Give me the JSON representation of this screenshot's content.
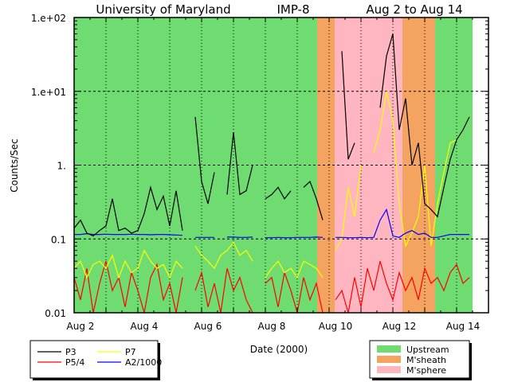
{
  "chart_data": {
    "type": "line",
    "title_parts": [
      "University of Maryland",
      "IMP-8",
      "Aug 2 to Aug 14"
    ],
    "xlabel": "Date (2000)",
    "ylabel": "Counts/Sec",
    "yscale": "log",
    "ylim": [
      0.01,
      100
    ],
    "xlim_days_since_aug2": [
      0,
      13
    ],
    "x_tick_labels": [
      {
        "day": 0,
        "label": "Aug 2"
      },
      {
        "day": 2,
        "label": "Aug 4"
      },
      {
        "day": 4,
        "label": "Aug 6"
      },
      {
        "day": 6,
        "label": "Aug 8"
      },
      {
        "day": 8,
        "label": "Aug 10"
      },
      {
        "day": 10,
        "label": "Aug 12"
      },
      {
        "day": 12,
        "label": "Aug 14"
      }
    ],
    "y_tick_labels": [
      {
        "value": 100,
        "label": "1.e+02"
      },
      {
        "value": 10,
        "label": "1.e+01"
      },
      {
        "value": 1,
        "label": "1."
      },
      {
        "value": 0.1,
        "label": "0.1"
      },
      {
        "value": 0.01,
        "label": "0.01"
      }
    ],
    "grid": "dotted vertical per day, dashed horizontal per decade",
    "regions": [
      {
        "name": "Upstream",
        "from": 0,
        "to": 7.625,
        "color": "#6edc70"
      },
      {
        "name": "M'sheath",
        "from": 7.625,
        "to": 8.175,
        "color": "#f4a460"
      },
      {
        "name": "M'sphere",
        "from": 8.175,
        "to": 10.3,
        "color": "#ffb6c1"
      },
      {
        "name": "M'sheath",
        "from": 10.3,
        "to": 11.325,
        "color": "#f4a460"
      },
      {
        "name": "Upstream",
        "from": 11.325,
        "to": 12.5,
        "color": "#6edc70"
      }
    ],
    "x_step_days": 0.2,
    "series": [
      {
        "name": "P3",
        "color": "#000000",
        "values": [
          0.14,
          0.18,
          0.12,
          0.11,
          0.13,
          0.15,
          0.35,
          0.13,
          0.14,
          0.12,
          0.13,
          0.22,
          0.5,
          0.25,
          0.38,
          0.15,
          0.45,
          0.13,
          null,
          4.5,
          0.6,
          0.3,
          0.8,
          null,
          0.4,
          2.8,
          0.4,
          0.45,
          1.0,
          null,
          0.35,
          0.4,
          0.5,
          0.35,
          0.45,
          null,
          0.5,
          0.6,
          0.35,
          0.18,
          null,
          null,
          35,
          1.2,
          2,
          null,
          null,
          null,
          6,
          30,
          60,
          3,
          8,
          1.0,
          2,
          0.3,
          0.25,
          0.2,
          0.5,
          1.2,
          2.2,
          3,
          4.5
        ]
      },
      {
        "name": "P5/4",
        "color": "#ff0000",
        "values": [
          0.03,
          0.015,
          0.04,
          0.01,
          0.025,
          0.05,
          0.02,
          0.03,
          0.012,
          0.035,
          0.02,
          0.01,
          0.03,
          0.045,
          0.015,
          0.025,
          0.01,
          0.03,
          null,
          0.02,
          0.035,
          0.012,
          0.025,
          0.01,
          0.04,
          0.02,
          0.03,
          0.015,
          0.01,
          null,
          0.025,
          0.03,
          0.012,
          0.035,
          0.02,
          0.01,
          0.03,
          0.015,
          0.025,
          0.01,
          null,
          0.015,
          0.02,
          0.01,
          0.03,
          0.012,
          0.04,
          0.02,
          0.05,
          0.025,
          0.015,
          0.035,
          0.02,
          0.03,
          0.015,
          0.04,
          0.025,
          0.03,
          0.02,
          0.035,
          0.045,
          0.025,
          0.03
        ]
      },
      {
        "name": "P7",
        "color": "#ffff00",
        "values": [
          0.04,
          0.05,
          0.03,
          0.045,
          0.05,
          0.04,
          0.06,
          0.03,
          0.05,
          0.035,
          0.04,
          0.07,
          0.05,
          0.04,
          0.045,
          0.03,
          0.05,
          0.04,
          null,
          0.08,
          0.06,
          0.05,
          0.04,
          0.06,
          0.07,
          0.09,
          0.06,
          0.07,
          0.05,
          null,
          0.03,
          0.04,
          0.05,
          0.035,
          0.04,
          0.03,
          0.05,
          0.045,
          0.04,
          0.03,
          null,
          0.07,
          0.1,
          0.5,
          0.2,
          1.0,
          null,
          1.5,
          3,
          10,
          4,
          0.3,
          0.08,
          0.12,
          0.2,
          1.0,
          0.08,
          0.3,
          0.8,
          2,
          2.2,
          3,
          4.5
        ]
      },
      {
        "name": "A2/1000",
        "color": "#0000ff",
        "values": [
          0.115,
          0.115,
          0.118,
          0.115,
          0.115,
          0.116,
          0.115,
          0.115,
          0.115,
          0.116,
          0.115,
          0.115,
          0.114,
          0.115,
          0.115,
          0.114,
          0.113,
          0.112,
          null,
          0.105,
          0.105,
          0.105,
          0.105,
          null,
          0.106,
          0.106,
          0.105,
          0.105,
          0.106,
          null,
          0.104,
          0.104,
          0.105,
          0.104,
          0.104,
          0.105,
          0.105,
          0.105,
          0.106,
          0.105,
          null,
          0.105,
          0.105,
          0.104,
          0.104,
          0.105,
          0.104,
          0.105,
          0.18,
          0.25,
          0.11,
          0.105,
          0.12,
          0.13,
          0.115,
          0.12,
          0.105,
          0.105,
          0.11,
          0.115,
          0.115,
          0.115,
          0.115
        ]
      }
    ],
    "legend_lines": [
      {
        "label": "P3",
        "color": "#000000"
      },
      {
        "label": "P7",
        "color": "#ffff00"
      },
      {
        "label": "P5/4",
        "color": "#ff0000"
      },
      {
        "label": "A2/1000",
        "color": "#0000ff"
      }
    ],
    "legend_regions": [
      {
        "label": "Upstream",
        "color": "#6edc70"
      },
      {
        "label": "M'sheath",
        "color": "#f4a460"
      },
      {
        "label": "M'sphere",
        "color": "#ffb6c1"
      }
    ]
  }
}
